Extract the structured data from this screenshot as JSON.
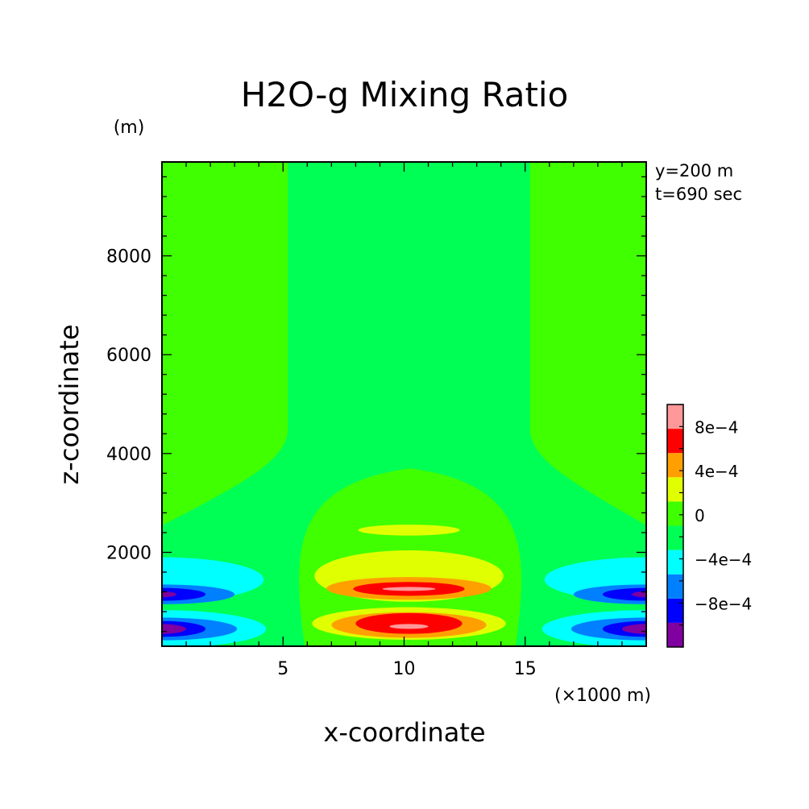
{
  "chart_data": {
    "type": "heatmap",
    "title": "H2O-g Mixing Ratio",
    "xlabel": "x-coordinate",
    "ylabel": "z-coordinate",
    "x_unit": "(×1000 m)",
    "y_unit": "(m)",
    "annotations": [
      "y=200 m",
      "t=690 sec"
    ],
    "xlim": [
      0,
      20
    ],
    "ylim": [
      100,
      9900
    ],
    "xticks": [
      5,
      10,
      15
    ],
    "yticks": [
      2000,
      4000,
      6000,
      8000
    ],
    "colorbar": {
      "levels": [
        -0.0012,
        -0.001,
        -0.0008,
        -0.0006,
        -0.0004,
        -0.0002,
        0,
        0.0002,
        0.0004,
        0.0006,
        0.0008,
        0.001
      ],
      "colors": [
        "#8000a0",
        "#0000ff",
        "#0080ff",
        "#00ffff",
        "#00ff55",
        "#40ff00",
        "#e0ff00",
        "#ffa000",
        "#ff0000",
        "#ff9999"
      ],
      "tick_labels": [
        {
          "level": 0.0008,
          "text": "8e−4"
        },
        {
          "level": 0.0004,
          "text": "4e−4"
        },
        {
          "level": 0,
          "text": "0"
        },
        {
          "level": -0.0004,
          "text": "−4e−4"
        },
        {
          "level": -0.0008,
          "text": "−8e−4"
        }
      ]
    },
    "background_level_index": 5,
    "regions": [
      {
        "name": "central-column",
        "level_index": 4,
        "shape": "column",
        "x": [
          5.2,
          15.2
        ],
        "z_top": 9900,
        "z_neck": 4500
      },
      {
        "name": "lower-dome",
        "level_index": 5,
        "shape": "dome",
        "x": [
          5.5,
          15
        ],
        "z": [
          100,
          3700
        ]
      },
      {
        "name": "upper-warm-band",
        "level_index": 6,
        "shape": "ellipse",
        "cx": 10.2,
        "cz": 2450,
        "rx": 2.1,
        "rz": 110
      },
      {
        "name": "mid-warm-band",
        "level_index": 6,
        "shape": "ellipse",
        "cx": 10.2,
        "cz": 1520,
        "rx": 3.9,
        "rz": 520
      },
      {
        "name": "mid-orange",
        "level_index": 7,
        "shape": "ellipse",
        "cx": 10.2,
        "cz": 1270,
        "rx": 3.4,
        "rz": 230
      },
      {
        "name": "mid-red",
        "level_index": 8,
        "shape": "ellipse",
        "cx": 10.2,
        "cz": 1260,
        "rx": 2.3,
        "rz": 140
      },
      {
        "name": "mid-pink",
        "level_index": 9,
        "shape": "ellipse",
        "cx": 10.2,
        "cz": 1260,
        "rx": 1.1,
        "rz": 40
      },
      {
        "name": "low-warm-band",
        "level_index": 6,
        "shape": "ellipse",
        "cx": 10.2,
        "cz": 560,
        "rx": 4.0,
        "rz": 330
      },
      {
        "name": "low-orange",
        "level_index": 7,
        "shape": "ellipse",
        "cx": 10.2,
        "cz": 530,
        "rx": 3.2,
        "rz": 260
      },
      {
        "name": "low-red",
        "level_index": 8,
        "shape": "ellipse",
        "cx": 10.2,
        "cz": 560,
        "rx": 2.2,
        "rz": 210
      },
      {
        "name": "low-pink",
        "level_index": 9,
        "shape": "ellipse",
        "cx": 10.2,
        "cz": 500,
        "rx": 0.8,
        "rz": 50
      },
      {
        "name": "left-cyan-upper",
        "level_index": 3,
        "shape": "edge",
        "side": "left",
        "cz": 1450,
        "reach": 4.2,
        "rz": 450
      },
      {
        "name": "left-cyan-lower",
        "level_index": 3,
        "shape": "edge",
        "side": "left",
        "cz": 450,
        "reach": 4.3,
        "rz": 380
      },
      {
        "name": "left-lightblue-upper",
        "level_index": 2,
        "shape": "edge",
        "side": "left",
        "cz": 1150,
        "reach": 3.0,
        "rz": 200
      },
      {
        "name": "left-lightblue-lower",
        "level_index": 2,
        "shape": "edge",
        "side": "left",
        "cz": 450,
        "reach": 3.1,
        "rz": 230
      },
      {
        "name": "left-blue-upper",
        "level_index": 1,
        "shape": "edge",
        "side": "left",
        "cz": 1150,
        "reach": 1.8,
        "rz": 130
      },
      {
        "name": "left-blue-lower",
        "level_index": 1,
        "shape": "edge",
        "side": "left",
        "cz": 450,
        "reach": 1.8,
        "rz": 160
      },
      {
        "name": "left-purple-upper",
        "level_index": 0,
        "shape": "edge",
        "side": "left",
        "cz": 1150,
        "reach": 0.6,
        "rz": 60
      },
      {
        "name": "left-purple-lower",
        "level_index": 0,
        "shape": "edge",
        "side": "left",
        "cz": 450,
        "reach": 1.0,
        "rz": 100
      },
      {
        "name": "right-cyan-upper",
        "level_index": 3,
        "shape": "edge",
        "side": "right",
        "cz": 1450,
        "reach": 4.2,
        "rz": 450
      },
      {
        "name": "right-cyan-lower",
        "level_index": 3,
        "shape": "edge",
        "side": "right",
        "cz": 450,
        "reach": 4.3,
        "rz": 380
      },
      {
        "name": "right-lightblue-upper",
        "level_index": 2,
        "shape": "edge",
        "side": "right",
        "cz": 1150,
        "reach": 3.0,
        "rz": 200
      },
      {
        "name": "right-lightblue-lower",
        "level_index": 2,
        "shape": "edge",
        "side": "right",
        "cz": 450,
        "reach": 3.1,
        "rz": 230
      },
      {
        "name": "right-blue-upper",
        "level_index": 1,
        "shape": "edge",
        "side": "right",
        "cz": 1150,
        "reach": 1.8,
        "rz": 130
      },
      {
        "name": "right-blue-lower",
        "level_index": 1,
        "shape": "edge",
        "side": "right",
        "cz": 450,
        "reach": 1.8,
        "rz": 160
      },
      {
        "name": "right-purple-upper",
        "level_index": 0,
        "shape": "edge",
        "side": "right",
        "cz": 1150,
        "reach": 0.6,
        "rz": 60
      },
      {
        "name": "right-purple-lower",
        "level_index": 0,
        "shape": "edge",
        "side": "right",
        "cz": 450,
        "reach": 1.0,
        "rz": 100
      }
    ]
  }
}
